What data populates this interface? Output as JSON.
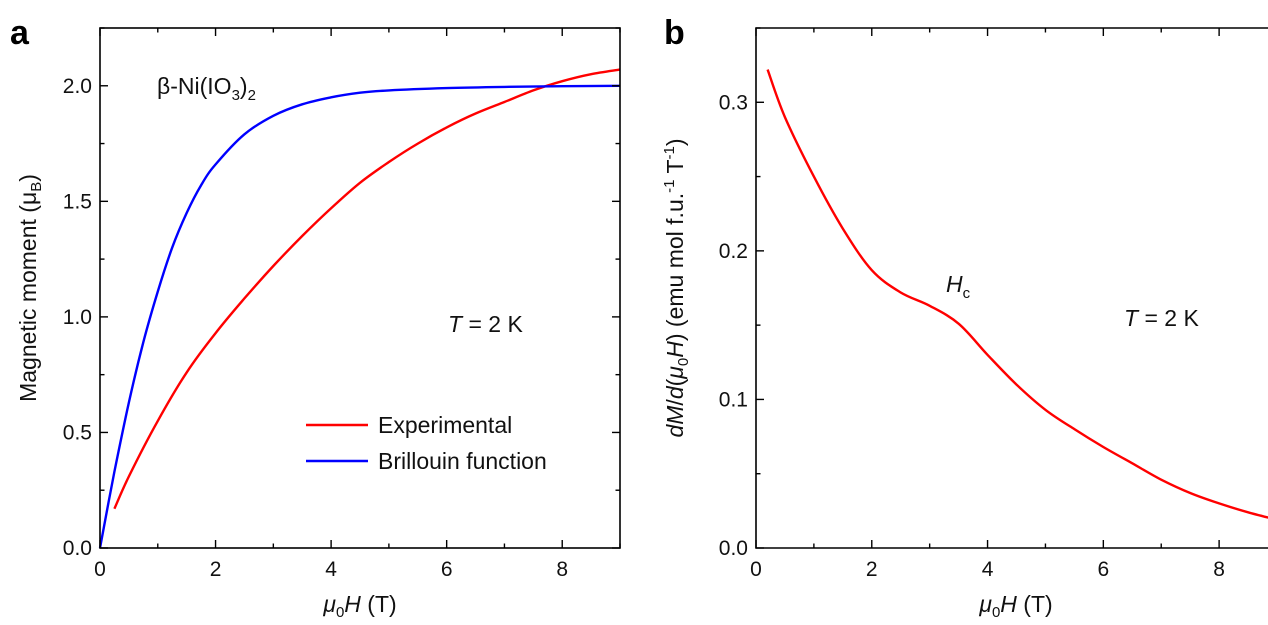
{
  "chart_data": [
    {
      "panel": "a",
      "type": "line",
      "xlabel_parts": [
        "μ",
        "0",
        "H",
        " (T)"
      ],
      "ylabel_parts": [
        "Magnetic moment (μ",
        "B",
        ")"
      ],
      "xlim": [
        0,
        9
      ],
      "ylim": [
        0,
        2.25
      ],
      "xticks": [
        0,
        2,
        4,
        6,
        8
      ],
      "xtick_labels": [
        "0",
        "2",
        "4",
        "6",
        "8"
      ],
      "yticks": [
        0,
        0.5,
        1.0,
        1.5,
        2.0
      ],
      "ytick_labels": [
        "0.0",
        "0.5",
        "1.0",
        "1.5",
        "2.0"
      ],
      "compound_parts": [
        "β-Ni(IO",
        "3",
        ")",
        "2"
      ],
      "temperature_parts": [
        "T",
        " = 2 K"
      ],
      "legend_position": "lower-right",
      "series": [
        {
          "name": "Experimental",
          "color": "#ff0000",
          "x": [
            0.25,
            0.5,
            1,
            1.5,
            2,
            2.5,
            3,
            3.5,
            4,
            4.5,
            5,
            5.5,
            6,
            6.5,
            7,
            7.5,
            8,
            8.5,
            9
          ],
          "y": [
            0.17,
            0.31,
            0.55,
            0.76,
            0.93,
            1.08,
            1.22,
            1.35,
            1.47,
            1.58,
            1.67,
            1.75,
            1.82,
            1.88,
            1.93,
            1.98,
            2.02,
            2.05,
            2.07
          ]
        },
        {
          "name": "Brillouin function",
          "color": "#0000ff",
          "x": [
            0,
            0.25,
            0.5,
            0.75,
            1,
            1.25,
            1.5,
            1.75,
            2,
            2.5,
            3,
            3.5,
            4,
            4.5,
            5,
            6,
            7,
            8,
            9
          ],
          "y": [
            0,
            0.33,
            0.63,
            0.89,
            1.11,
            1.3,
            1.45,
            1.57,
            1.66,
            1.79,
            1.87,
            1.92,
            1.95,
            1.97,
            1.98,
            1.99,
            1.995,
            1.998,
            2.0
          ]
        }
      ]
    },
    {
      "panel": "b",
      "type": "line",
      "xlabel_parts": [
        "μ",
        "0",
        "H",
        " (T)"
      ],
      "ylabel_parts": [
        "dM",
        "/",
        "d",
        "(",
        "μ",
        "0",
        "H",
        ") (emu mol f.u.",
        "-1",
        " T",
        "-1",
        ")"
      ],
      "xlim": [
        0,
        9
      ],
      "ylim": [
        0,
        0.35
      ],
      "xticks": [
        0,
        2,
        4,
        6,
        8
      ],
      "xtick_labels": [
        "0",
        "2",
        "4",
        "6",
        "8"
      ],
      "yticks": [
        0,
        0.1,
        0.2,
        0.3
      ],
      "ytick_labels": [
        "0.0",
        "0.1",
        "0.2",
        "0.3"
      ],
      "annotation_parts": [
        "H",
        "c"
      ],
      "temperature_parts": [
        "T",
        " = 2 K"
      ],
      "series": [
        {
          "color": "#ff0000",
          "x": [
            0.2,
            0.5,
            1,
            1.5,
            2,
            2.5,
            3,
            3.5,
            4,
            4.5,
            5,
            5.5,
            6,
            6.5,
            7,
            7.5,
            8,
            8.5,
            9
          ],
          "y": [
            0.322,
            0.29,
            0.25,
            0.215,
            0.187,
            0.172,
            0.163,
            0.151,
            0.13,
            0.11,
            0.093,
            0.08,
            0.068,
            0.057,
            0.046,
            0.037,
            0.03,
            0.024,
            0.019
          ]
        }
      ]
    }
  ]
}
